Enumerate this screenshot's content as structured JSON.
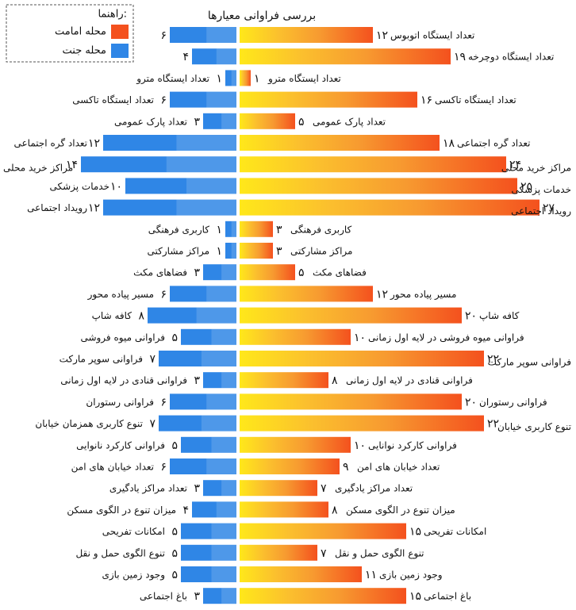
{
  "chart_data": {
    "type": "diverging_bar",
    "title": "بررسی فراوانی معیارها",
    "legend_title": "راهنما:",
    "series": [
      {
        "name": "محله امامت",
        "color": "#f4511e",
        "side": "right",
        "labels": [
          "تعداد ایستگاه اتوبوس",
          "تعداد ایستگاه دوچرخه",
          "تعداد ایستگاه مترو",
          "تعداد ایستگاه تاکسی",
          "تعداد پارک عمومی",
          "تعداد گره اجتماعی",
          "مراکز خرید محلی",
          "خدمات پزشکی",
          "رویداد اجتماعی",
          "کاربری فرهنگی",
          "مراکز مشارکتی",
          "فضاهای مکث",
          "مسیر پیاده محور",
          "کافه شاپ",
          "فراوانی میوه فروشی در لایه اول زمانی",
          "فراوانی سوپر مارکت",
          "فراوانی قنادی در لایه اول زمانی",
          "فراوانی رستوران",
          "تنوع کاربری خیابان",
          "فراوانی کارکرد نوانایی",
          "تعداد خیابان های امن",
          "تعداد مراکز یادگیری",
          "میزان تنوع در الگوی مسکن",
          "امکانات تفریحی",
          "تنوع الگوی حمل و نقل",
          "وجود زمین بازی",
          "باغ اجتماعی"
        ],
        "values": [
          12,
          19,
          1,
          16,
          5,
          18,
          24,
          25,
          27,
          3,
          3,
          5,
          12,
          20,
          10,
          22,
          8,
          20,
          22,
          10,
          9,
          7,
          8,
          15,
          7,
          11,
          15
        ],
        "value_labels": [
          "۱۲",
          "۱۹",
          "۱",
          "۱۶",
          "۵",
          "۱۸",
          "۲۴",
          "۲۵",
          "۲۷",
          "۳",
          "۳",
          "۵",
          "۱۲",
          "۲۰",
          "۱۰",
          "۲۲",
          "۸",
          "۲۰",
          "۲۲",
          "۱۰",
          "۹",
          "۷",
          "۸",
          "۱۵",
          "۷",
          "۱۱",
          "۱۵"
        ]
      },
      {
        "name": "محله جنت",
        "color": "#2f86e6",
        "side": "left",
        "labels": [
          null,
          null,
          "تعداد ایستگاه مترو",
          "تعداد ایستگاه تاکسی",
          "تعداد پارک عمومی",
          "تعداد گره اجتماعی",
          "مراکز خرید محلی",
          "خدمات پزشکی",
          "رویداد اجتماعی",
          "کاربری فرهنگی",
          "مراکز مشارکتی",
          "فضاهای مکث",
          "مسیر پیاده محور",
          "کافه شاپ",
          "فراوانی میوه فروشی",
          "فراوانی سوپر مارکت",
          "فراوانی قنادی در لایه اول زمانی",
          "فراوانی رستوران",
          "تنوع کاربری همزمان خیابان",
          "فراوانی کارکرد نانوایی",
          "تعداد خیابان های امن",
          "تعداد مراکز یادگیری",
          "میزان تنوع در الگوی مسکن",
          "امکانات تفریحی",
          "تنوع الگوی حمل و نقل",
          "وجود زمین بازی",
          "باغ اجتماعی"
        ],
        "values": [
          6,
          4,
          1,
          6,
          3,
          12,
          14,
          10,
          12,
          1,
          1,
          3,
          6,
          8,
          5,
          7,
          3,
          6,
          7,
          5,
          6,
          3,
          4,
          5,
          5,
          5,
          3
        ],
        "value_labels": [
          "۶",
          "۴",
          "۱",
          "۶",
          "۳",
          "۱۲",
          "۱۴",
          "۱۰",
          "۱۲",
          "۱",
          "۱",
          "۳",
          "۶",
          "۸",
          "۵",
          "۷",
          "۳",
          "۶",
          "۷",
          "۵",
          "۶",
          "۳",
          "۴",
          "۵",
          "۵",
          "۵",
          "۳"
        ]
      }
    ]
  }
}
